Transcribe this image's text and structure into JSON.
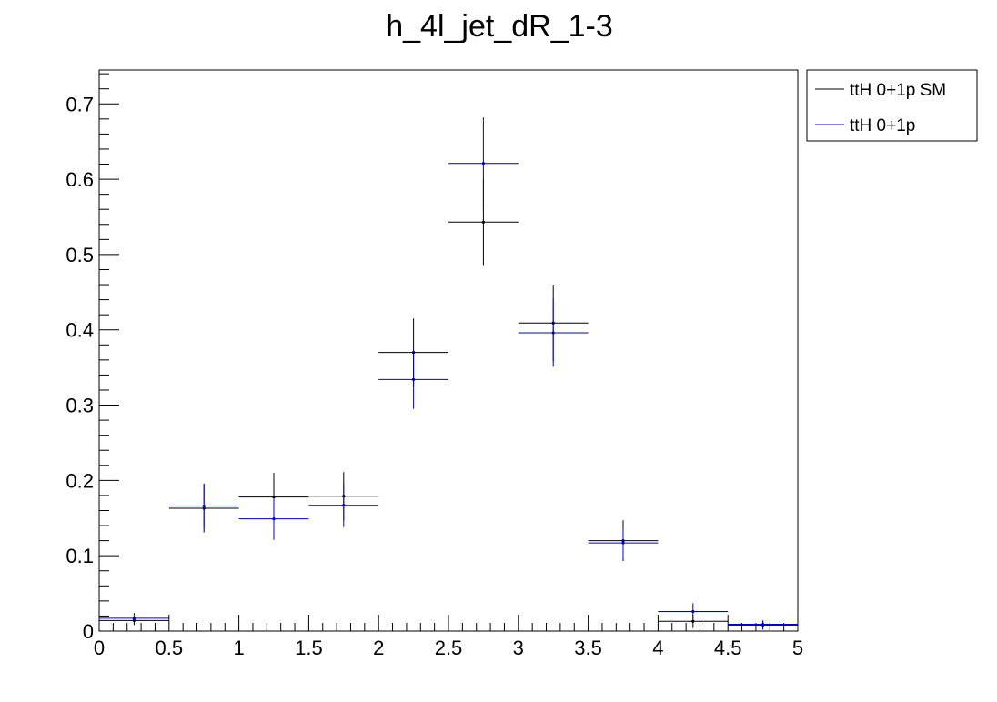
{
  "chart_data": {
    "type": "scatter",
    "title": "h_4l_jet_dR_1-3",
    "xlabel": "",
    "ylabel": "",
    "xlim": [
      0,
      5
    ],
    "ylim": [
      0,
      0.745
    ],
    "grid": false,
    "legend_position": "top-right-outside",
    "x_ticks": [
      {
        "value": 0,
        "label": "0"
      },
      {
        "value": 0.5,
        "label": "0.5"
      },
      {
        "value": 1,
        "label": "1"
      },
      {
        "value": 1.5,
        "label": "1.5"
      },
      {
        "value": 2,
        "label": "2"
      },
      {
        "value": 2.5,
        "label": "2.5"
      },
      {
        "value": 3,
        "label": "3"
      },
      {
        "value": 3.5,
        "label": "3.5"
      },
      {
        "value": 4,
        "label": "4"
      },
      {
        "value": 4.5,
        "label": "4.5"
      },
      {
        "value": 5,
        "label": "5"
      }
    ],
    "y_ticks": [
      {
        "value": 0,
        "label": "0"
      },
      {
        "value": 0.1,
        "label": "0.1"
      },
      {
        "value": 0.2,
        "label": "0.2"
      },
      {
        "value": 0.3,
        "label": "0.3"
      },
      {
        "value": 0.4,
        "label": "0.4"
      },
      {
        "value": 0.5,
        "label": "0.5"
      },
      {
        "value": 0.6,
        "label": "0.6"
      },
      {
        "value": 0.7,
        "label": "0.7"
      }
    ],
    "series": [
      {
        "name": "ttH 0+1p SM",
        "color": "#000000",
        "points": [
          {
            "x": 0.25,
            "xlo": 0.0,
            "xhi": 0.5,
            "y": 0.014,
            "err": 0.006
          },
          {
            "x": 0.75,
            "xlo": 0.5,
            "xhi": 1.0,
            "y": 0.163,
            "err": 0.032
          },
          {
            "x": 1.25,
            "xlo": 1.0,
            "xhi": 1.5,
            "y": 0.178,
            "err": 0.032
          },
          {
            "x": 1.75,
            "xlo": 1.5,
            "xhi": 2.0,
            "y": 0.179,
            "err": 0.032
          },
          {
            "x": 2.25,
            "xlo": 2.0,
            "xhi": 2.5,
            "y": 0.37,
            "err": 0.045
          },
          {
            "x": 2.75,
            "xlo": 2.5,
            "xhi": 3.0,
            "y": 0.543,
            "err": 0.057
          },
          {
            "x": 3.25,
            "xlo": 3.0,
            "xhi": 3.5,
            "y": 0.409,
            "err": 0.051
          },
          {
            "x": 3.75,
            "xlo": 3.5,
            "xhi": 4.0,
            "y": 0.12,
            "err": 0.027
          },
          {
            "x": 4.25,
            "xlo": 4.0,
            "xhi": 4.5,
            "y": 0.013,
            "err": 0.009
          },
          {
            "x": 4.75,
            "xlo": 4.5,
            "xhi": 5.0,
            "y": 0.008,
            "err": 0.006
          }
        ]
      },
      {
        "name": "ttH 0+1p",
        "color": "#0000cc",
        "points": [
          {
            "x": 0.25,
            "xlo": 0.0,
            "xhi": 0.5,
            "y": 0.017,
            "err": 0.007
          },
          {
            "x": 0.75,
            "xlo": 0.5,
            "xhi": 1.0,
            "y": 0.166,
            "err": 0.03
          },
          {
            "x": 1.25,
            "xlo": 1.0,
            "xhi": 1.5,
            "y": 0.149,
            "err": 0.028
          },
          {
            "x": 1.75,
            "xlo": 1.5,
            "xhi": 2.0,
            "y": 0.167,
            "err": 0.029
          },
          {
            "x": 2.25,
            "xlo": 2.0,
            "xhi": 2.5,
            "y": 0.334,
            "err": 0.039
          },
          {
            "x": 2.75,
            "xlo": 2.5,
            "xhi": 3.0,
            "y": 0.621,
            "err": 0.061
          },
          {
            "x": 3.25,
            "xlo": 3.0,
            "xhi": 3.5,
            "y": 0.396,
            "err": 0.045
          },
          {
            "x": 3.75,
            "xlo": 3.5,
            "xhi": 4.0,
            "y": 0.117,
            "err": 0.02
          },
          {
            "x": 4.25,
            "xlo": 4.0,
            "xhi": 4.5,
            "y": 0.026,
            "err": 0.011
          },
          {
            "x": 4.75,
            "xlo": 4.5,
            "xhi": 5.0,
            "y": 0.009,
            "err": 0.005
          }
        ]
      }
    ]
  }
}
